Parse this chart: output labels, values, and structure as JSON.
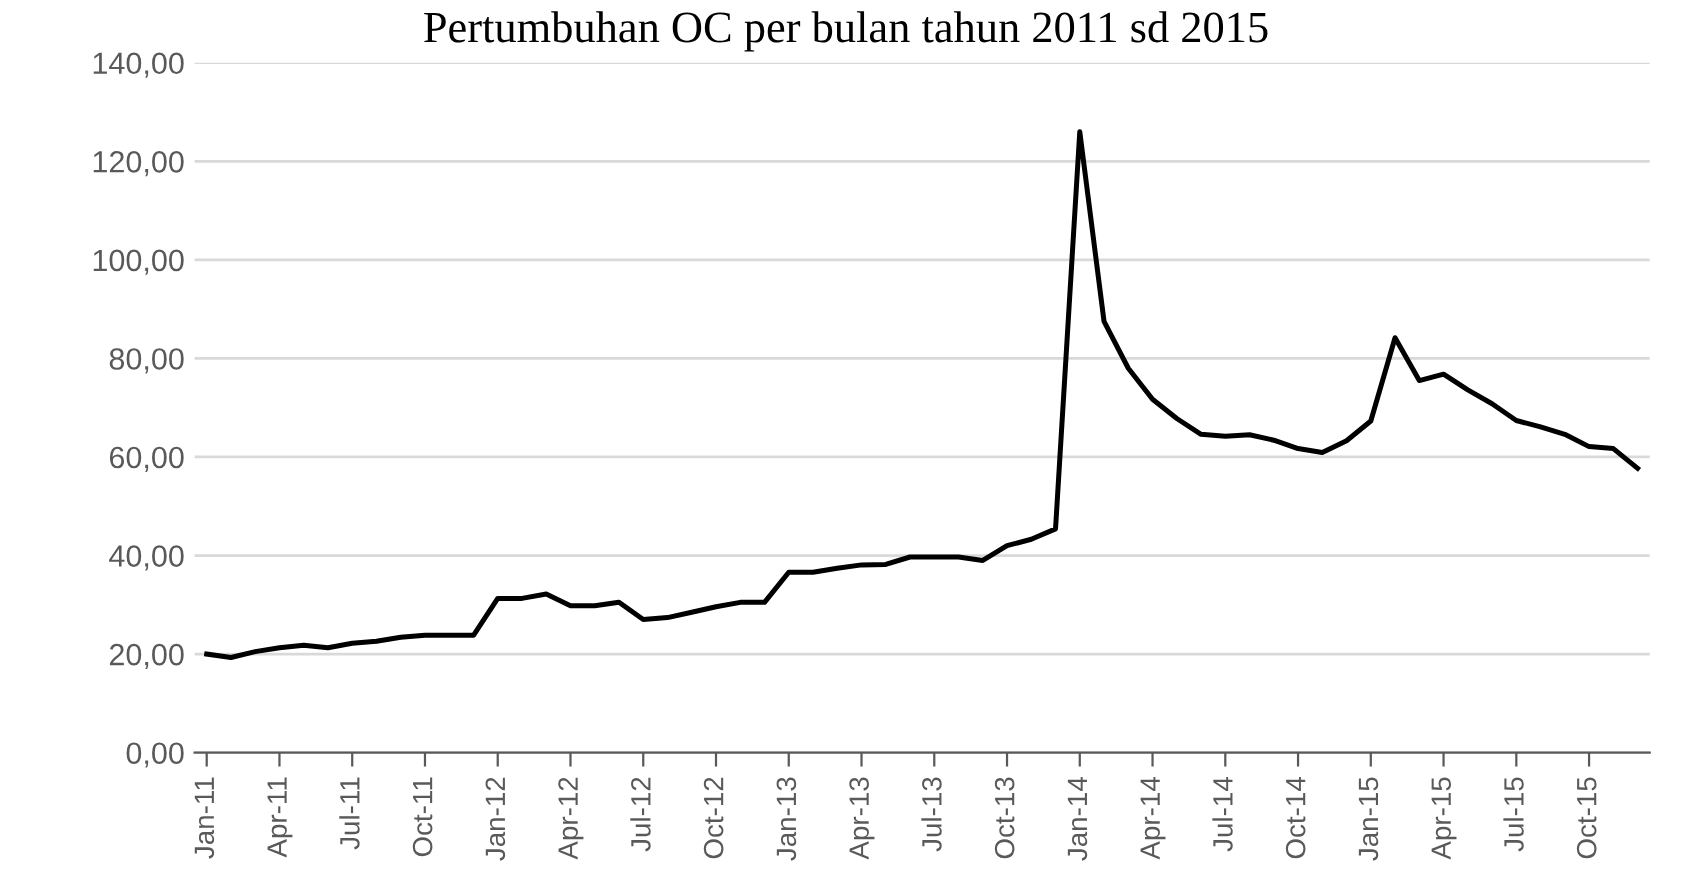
{
  "chart_data": {
    "type": "line",
    "title": "Pertumbuhan OC per bulan tahun 2011 sd 2015",
    "categories": [
      "Jan-11",
      null,
      null,
      "Apr-11",
      null,
      null,
      "Jul-11",
      null,
      null,
      "Oct-11",
      null,
      null,
      "Jan-12",
      null,
      null,
      "Apr-12",
      null,
      null,
      "Jul-12",
      null,
      null,
      "Oct-12",
      null,
      null,
      "Jan-13",
      null,
      null,
      "Apr-13",
      null,
      null,
      "Jul-13",
      null,
      null,
      "Oct-13",
      null,
      null,
      "Jan-14",
      null,
      null,
      "Apr-14",
      null,
      null,
      "Jul-14",
      null,
      null,
      "Oct-14",
      null,
      null,
      "Jan-15",
      null,
      null,
      "Apr-15",
      null,
      null,
      "Jul-15",
      null,
      null,
      "Oct-15",
      null,
      null
    ],
    "series": [
      {
        "color": "#000000",
        "values": [
          20,
          19.3,
          20.5,
          21.3,
          21.8,
          21.3,
          22.2,
          22.6,
          23.4,
          23.8,
          23.8,
          23.8,
          31.3,
          31.3,
          32.2,
          29.8,
          29.8,
          30.5,
          27,
          27.4,
          28.5,
          29.6,
          30.5,
          30.5,
          36.6,
          36.6,
          37.4,
          38.1,
          38.2,
          39.7,
          39.7,
          39.7,
          39,
          42,
          43.3,
          45.4,
          126,
          87.5,
          78,
          71.7,
          67.8,
          64.6,
          64.2,
          64.5,
          63.4,
          61.7,
          60.9,
          63.3,
          67.3,
          84.2,
          75.5,
          76.8,
          73.6,
          70.8,
          67.4,
          66.1,
          64.6,
          62.1,
          61.7,
          57.7
        ]
      }
    ],
    "ylim": [
      0,
      140
    ],
    "yticks": [
      {
        "value": 0,
        "label": "0,00"
      },
      {
        "value": 20,
        "label": "20,00"
      },
      {
        "value": 40,
        "label": "40,00"
      },
      {
        "value": 60,
        "label": "60,00"
      },
      {
        "value": 80,
        "label": "80,00"
      },
      {
        "value": 100,
        "label": "100,00"
      },
      {
        "value": 120,
        "label": "120,00"
      },
      {
        "value": 140,
        "label": "140,00"
      }
    ],
    "grid": "y",
    "legend": false,
    "marker": "none",
    "line_style": "solid"
  }
}
